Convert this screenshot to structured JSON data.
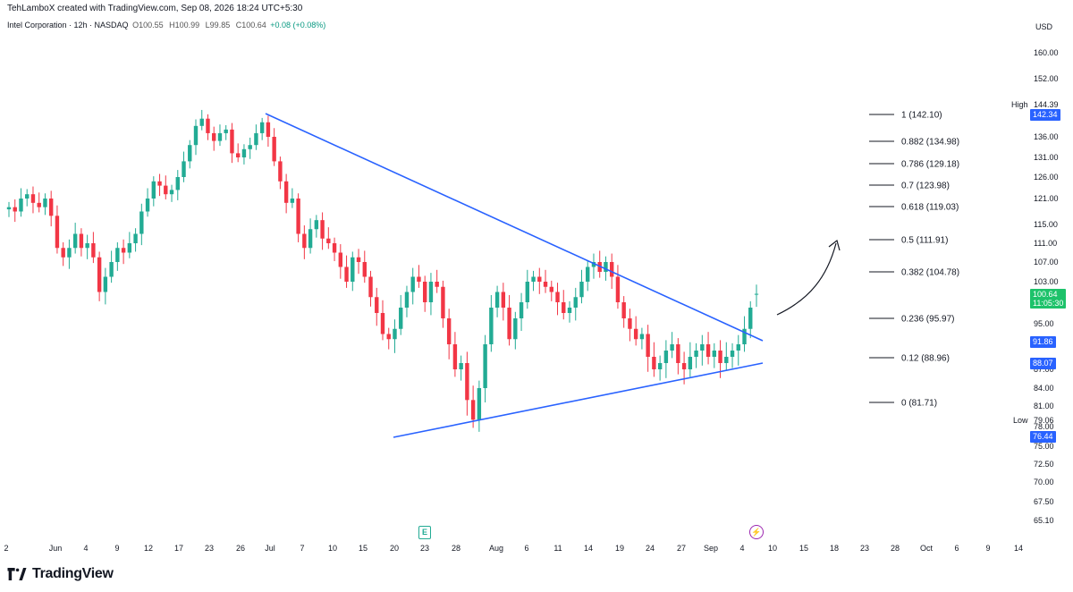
{
  "header": {
    "author_line": "TehLamboX created with TradingView.com, Sep 08, 2026 18:24 UTC+5:30",
    "symbol": "Intel Corporation · 12h · NASDAQ",
    "open": "O100.55",
    "high": "H100.99",
    "low": "L99.85",
    "close": "C100.64",
    "change": "+0.08 (+0.08%)",
    "currency": "USD"
  },
  "footer": {
    "brand": "TradingView",
    "logo": "tradingview-logo"
  },
  "colors": {
    "up": "#22ab94",
    "down": "#f23645",
    "trendline": "#2962ff",
    "fib": "#131722",
    "badge_blue": "#2962ff",
    "badge_green": "#1dc26a"
  },
  "chart_data": {
    "type": "candlestick",
    "timeframe": "12h",
    "y_axis_ticks": [
      "160.00",
      "152.00",
      "144.39",
      "136.00",
      "131.00",
      "126.00",
      "121.00",
      "115.00",
      "111.00",
      "107.00",
      "103.00",
      "99.00",
      "95.00",
      "91.00",
      "87.00",
      "84.00",
      "81.00",
      "78.00",
      "75.00",
      "72.50",
      "70.00",
      "67.50",
      "65.10"
    ],
    "x_axis_ticks": [
      "2",
      "Jun",
      "4",
      "9",
      "12",
      "17",
      "23",
      "26",
      "Jul",
      "7",
      "10",
      "15",
      "20",
      "23",
      "28",
      "Aug",
      "6",
      "11",
      "14",
      "19",
      "24",
      "27",
      "Sep",
      "4",
      "10",
      "15",
      "18",
      "23",
      "28",
      "Oct",
      "6",
      "9",
      "14"
    ],
    "price_badges": [
      {
        "label": "High",
        "value": "144.39",
        "kind": "label"
      },
      {
        "value": "142.34",
        "kind": "blue"
      },
      {
        "value": "100.64",
        "sub": "11:05:30",
        "kind": "green"
      },
      {
        "value": "91.86",
        "kind": "blue"
      },
      {
        "value": "88.07",
        "kind": "blue"
      },
      {
        "label": "Low",
        "value": "79.06",
        "kind": "label"
      },
      {
        "value": "76.44",
        "kind": "blue"
      }
    ],
    "fib_levels": [
      {
        "ratio": "1",
        "price": 142.1,
        "label": "1 (142.10)"
      },
      {
        "ratio": "0.882",
        "price": 134.98,
        "label": "0.882 (134.98)"
      },
      {
        "ratio": "0.786",
        "price": 129.18,
        "label": "0.786 (129.18)"
      },
      {
        "ratio": "0.7",
        "price": 123.98,
        "label": "0.7 (123.98)"
      },
      {
        "ratio": "0.618",
        "price": 119.03,
        "label": "0.618 (119.03)"
      },
      {
        "ratio": "0.5",
        "price": 111.91,
        "label": "0.5 (111.91)"
      },
      {
        "ratio": "0.382",
        "price": 104.78,
        "label": "0.382 (104.78)"
      },
      {
        "ratio": "0.236",
        "price": 95.97,
        "label": "0.236 (95.97)"
      },
      {
        "ratio": "0.12",
        "price": 88.96,
        "label": "0.12 (88.96)"
      },
      {
        "ratio": "0",
        "price": 81.71,
        "label": "0 (81.71)"
      }
    ],
    "closes": [
      119,
      118,
      121,
      122,
      120,
      119,
      121,
      117,
      110,
      108,
      110,
      113,
      110,
      111,
      108,
      101,
      104,
      107,
      110,
      109,
      111,
      113,
      118,
      121,
      125,
      124,
      122,
      123,
      126,
      130,
      134,
      139,
      141,
      137,
      135,
      137,
      138,
      132,
      131,
      133,
      134,
      137,
      140,
      136,
      130,
      125,
      120,
      121,
      113,
      110,
      114,
      116,
      112,
      111,
      109,
      106,
      103,
      108,
      107,
      104,
      100,
      97,
      93,
      92,
      94,
      98,
      101,
      104,
      103,
      99,
      103,
      102,
      96,
      91,
      87,
      88,
      82,
      79,
      84,
      91,
      98,
      101,
      98,
      92,
      96,
      99,
      103,
      104,
      103,
      102,
      101,
      99,
      97,
      98,
      100,
      103,
      106,
      107,
      105,
      107,
      104,
      99,
      96,
      94,
      92,
      93,
      89,
      87,
      88,
      90,
      91,
      88,
      87,
      89,
      90,
      91,
      89,
      90,
      88,
      89,
      90,
      91,
      94,
      98,
      100.64
    ],
    "trendlines": [
      {
        "name": "descending",
        "from": {
          "x": "Jul 1",
          "y": 142.1
        },
        "to": {
          "x": "Sep 6",
          "y": 91.86
        }
      },
      {
        "name": "ascending",
        "from": {
          "x": "Jul 20",
          "y": 76.44
        },
        "to": {
          "x": "Sep 6",
          "y": 88.07
        }
      }
    ]
  }
}
